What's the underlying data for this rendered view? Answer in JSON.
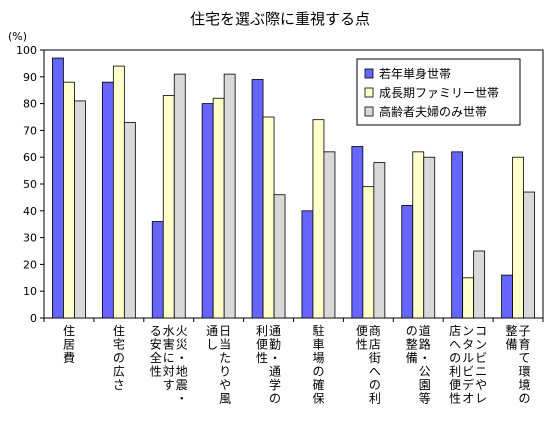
{
  "chart_data": {
    "type": "bar",
    "title": "住宅を選ぶ際に重視する点",
    "ylabel": "(%)",
    "ylim": [
      0,
      100
    ],
    "ytick_step": 10,
    "grid": false,
    "legend_position": "top-right",
    "categories": [
      {
        "lines": [
          "住居費"
        ]
      },
      {
        "lines": [
          "住宅の広さ"
        ]
      },
      {
        "lines": [
          "火災・地震・",
          "水害に対す",
          "る安全性"
        ]
      },
      {
        "lines": [
          "日当たりや風",
          "通し"
        ]
      },
      {
        "lines": [
          "通勤・通学の",
          "利便性"
        ]
      },
      {
        "lines": [
          "駐車場の確保"
        ]
      },
      {
        "lines": [
          "商店街への利",
          "便性"
        ]
      },
      {
        "lines": [
          "道路・公園等",
          "の整備"
        ]
      },
      {
        "lines": [
          "コンビニやレ",
          "ンタルビデオ",
          "店への利便性"
        ]
      },
      {
        "lines": [
          "子育て環境の",
          "整備"
        ]
      }
    ],
    "series": [
      {
        "name": "若年単身世帯",
        "color": "#6666ff",
        "values": [
          97,
          88,
          36,
          80,
          89,
          40,
          64,
          42,
          62,
          16
        ]
      },
      {
        "name": "成長期ファミリー世帯",
        "color": "#ffffcc",
        "values": [
          88,
          94,
          83,
          82,
          75,
          74,
          49,
          62,
          15,
          60
        ]
      },
      {
        "name": "高齢者夫婦のみ世帯",
        "color": "#d9d9d9",
        "values": [
          81,
          73,
          91,
          91,
          46,
          62,
          58,
          60,
          25,
          47
        ]
      }
    ]
  }
}
